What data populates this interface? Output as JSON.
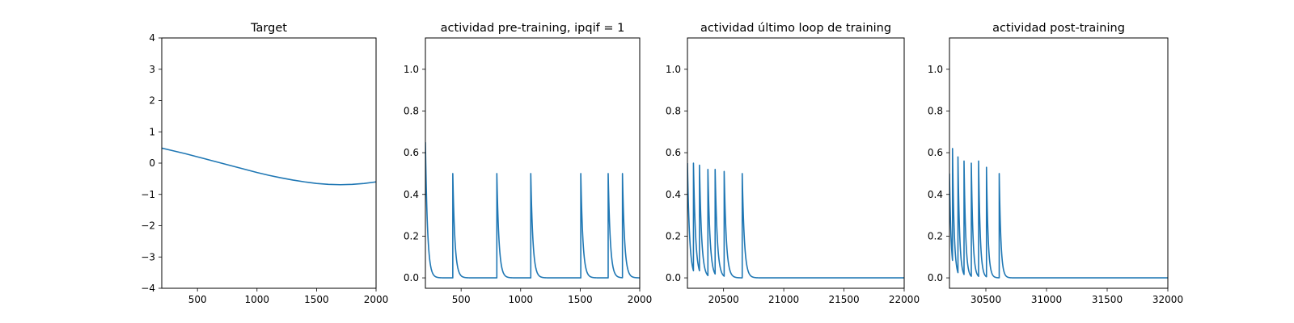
{
  "chart_data": [
    {
      "type": "line",
      "title": "Target",
      "xlim": [
        200,
        2000
      ],
      "ylim": [
        -4,
        4
      ],
      "xticks": [
        500,
        1000,
        1500,
        2000
      ],
      "yticks": [
        -4,
        -3,
        -2,
        -1,
        0,
        1,
        2,
        3,
        4
      ],
      "xtick_labels": [
        "500",
        "1000",
        "1500",
        "2000"
      ],
      "ytick_labels": [
        "−4",
        "−3",
        "−2",
        "−1",
        "0",
        "1",
        "2",
        "3",
        "4"
      ],
      "color": "#1f77b4",
      "series": [
        {
          "x": [
            200,
            300,
            400,
            500,
            600,
            700,
            800,
            900,
            1000,
            1100,
            1200,
            1300,
            1400,
            1500,
            1600,
            1700,
            1800,
            1900,
            2000
          ],
          "y": [
            0.48,
            0.39,
            0.3,
            0.2,
            0.1,
            0.0,
            -0.1,
            -0.2,
            -0.3,
            -0.39,
            -0.47,
            -0.54,
            -0.6,
            -0.65,
            -0.68,
            -0.69,
            -0.68,
            -0.65,
            -0.6
          ]
        }
      ]
    },
    {
      "type": "line",
      "title": "actividad pre-training, ipqif = 1",
      "xlim": [
        200,
        2000
      ],
      "ylim": [
        -0.05,
        1.15
      ],
      "xticks": [
        500,
        1000,
        1500,
        2000
      ],
      "yticks": [
        0.0,
        0.2,
        0.4,
        0.6,
        0.8,
        1.0
      ],
      "xtick_labels": [
        "500",
        "1000",
        "1500",
        "2000"
      ],
      "ytick_labels": [
        "0.0",
        "0.2",
        "0.4",
        "0.6",
        "0.8",
        "1.0"
      ],
      "color": "#1f77b4",
      "initial_value": 0.65,
      "spike_times": [
        430,
        800,
        1085,
        1505,
        1735,
        1855
      ],
      "spike_peaks": [
        0.5,
        0.5,
        0.5,
        0.5,
        0.5,
        0.5
      ],
      "decay_constant": 18
    },
    {
      "type": "line",
      "title": "actividad último loop de training",
      "xlim": [
        20200,
        22000
      ],
      "ylim": [
        -0.05,
        1.15
      ],
      "xticks": [
        20500,
        21000,
        21500,
        22000
      ],
      "yticks": [
        0.0,
        0.2,
        0.4,
        0.6,
        0.8,
        1.0
      ],
      "xtick_labels": [
        "20500",
        "21000",
        "21500",
        "22000"
      ],
      "ytick_labels": [
        "0.0",
        "0.2",
        "0.4",
        "0.6",
        "0.8",
        "1.0"
      ],
      "color": "#1f77b4",
      "initial_value": 0.55,
      "spike_times": [
        20250,
        20300,
        20370,
        20430,
        20505,
        20655
      ],
      "spike_peaks": [
        0.55,
        0.54,
        0.52,
        0.52,
        0.51,
        0.5
      ],
      "decay_constant": 18
    },
    {
      "type": "line",
      "title": "actividad post-training",
      "xlim": [
        30200,
        32000
      ],
      "ylim": [
        -0.05,
        1.15
      ],
      "xticks": [
        30500,
        31000,
        31500,
        32000
      ],
      "yticks": [
        0.0,
        0.2,
        0.4,
        0.6,
        0.8,
        1.0
      ],
      "xtick_labels": [
        "30500",
        "31000",
        "31500",
        "32000"
      ],
      "ytick_labels": [
        "0.0",
        "0.2",
        "0.4",
        "0.6",
        "0.8",
        "1.0"
      ],
      "color": "#1f77b4",
      "initial_value": 0.5,
      "spike_times": [
        30225,
        30270,
        30320,
        30380,
        30440,
        30505,
        30610
      ],
      "spike_peaks": [
        0.62,
        0.58,
        0.56,
        0.55,
        0.56,
        0.53,
        0.5
      ],
      "decay_constant": 14
    }
  ]
}
